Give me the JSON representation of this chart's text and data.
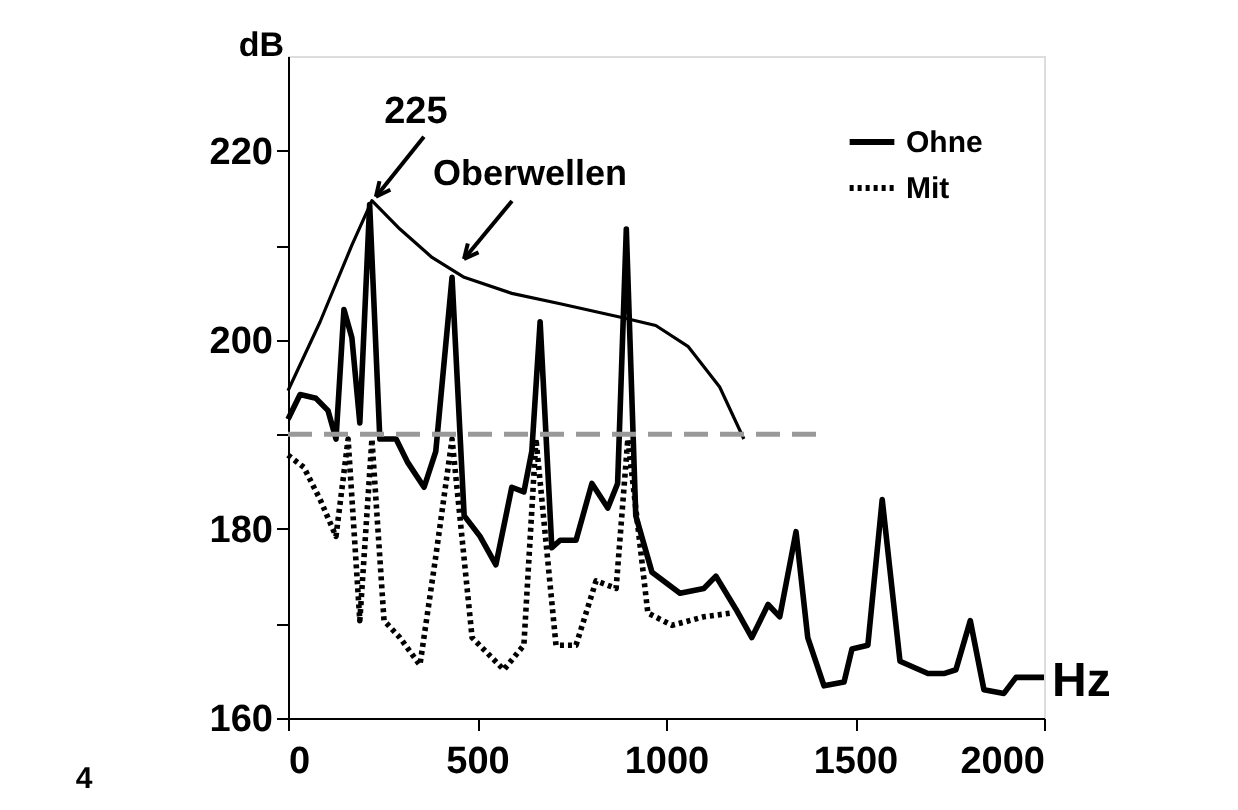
{
  "chart_data": {
    "type": "line",
    "xlabel": "Hz",
    "ylabel": "dB",
    "xlim": [
      0,
      2000
    ],
    "xticks": [
      0,
      500,
      1000,
      1500,
      2000
    ],
    "ylim": [
      160,
      230
    ],
    "yticks": [
      160,
      {
        "value": 170,
        "label": null
      },
      180,
      {
        "value": 190,
        "label": null
      },
      200,
      {
        "value": 210,
        "label": null
      },
      220
    ],
    "grid": false,
    "legend": "top right",
    "marker": "none",
    "annotations": [
      {
        "text": "225",
        "x": 222,
        "y": 214.7
      },
      {
        "text": "Oberwellen",
        "x": 455,
        "y": 207.9
      },
      "4"
    ],
    "series": [
      {
        "name": "Ohne",
        "color": "#000000",
        "line_style": "solid",
        "x": [
          0,
          32,
          74,
          106,
          127,
          148,
          169,
          190,
          216,
          243,
          286,
          317,
          360,
          391,
          434,
          466,
          508,
          550,
          592,
          624,
          645,
          667,
          698,
          720,
          762,
          804,
          846,
          872,
          895,
          920,
          963,
          1037,
          1100,
          1132,
          1185,
          1227,
          1270,
          1301,
          1344,
          1375,
          1418,
          1471,
          1492,
          1534,
          1572,
          1619,
          1693,
          1735,
          1767,
          1805,
          1841,
          1894,
          1926,
          2000
        ],
        "values": [
          191.6,
          194.2,
          193.8,
          192.5,
          189.5,
          203.2,
          200.2,
          191.2,
          214.3,
          189.5,
          189.5,
          187,
          184.4,
          188.2,
          206.6,
          181.4,
          179.2,
          176.2,
          184.4,
          183.9,
          188.2,
          201.9,
          178,
          178.8,
          178.8,
          184.8,
          182.2,
          184.8,
          211.7,
          181.4,
          175.4,
          173.2,
          173.7,
          175,
          171.5,
          168.5,
          172,
          170.7,
          179.7,
          168.5,
          163.4,
          163.8,
          167.3,
          167.7,
          183.1,
          166,
          164.7,
          164.7,
          165.1,
          170.3,
          163,
          162.6,
          164.3,
          164.3
        ]
      },
      {
        "name": "Mit",
        "color": "#000000",
        "line_style": "dotted",
        "x": [
          0,
          42,
          85,
          127,
          159,
          190,
          222,
          254,
          296,
          349,
          391,
          434,
          487,
          571,
          624,
          656,
          709,
          762,
          815,
          868,
          899,
          952,
          1016,
          1100,
          1174
        ],
        "values": [
          187.8,
          186.5,
          183.1,
          179.2,
          189.5,
          170.3,
          189.5,
          170.3,
          168.5,
          165.6,
          177.1,
          189.5,
          168.5,
          165.1,
          167.7,
          189.5,
          167.7,
          167.7,
          174.5,
          173.7,
          189.5,
          171.1,
          169.8,
          170.7,
          171.1
        ]
      },
      {
        "color": "#000000",
        "line_style": "solid",
        "x": [
          0,
          85,
          169,
          222,
          296,
          381,
          466,
          592,
          720,
          889,
          973,
          1058,
          1142,
          1206
        ],
        "values": [
          194.6,
          201.9,
          210,
          214.7,
          211.7,
          208.7,
          206.6,
          204.9,
          203.8,
          202.3,
          201.5,
          199.3,
          195,
          189.5
        ]
      },
      {
        "color": "#999999",
        "line_style": "dashed",
        "x": [
          0,
          1400
        ],
        "values": [
          190,
          190
        ]
      }
    ]
  }
}
